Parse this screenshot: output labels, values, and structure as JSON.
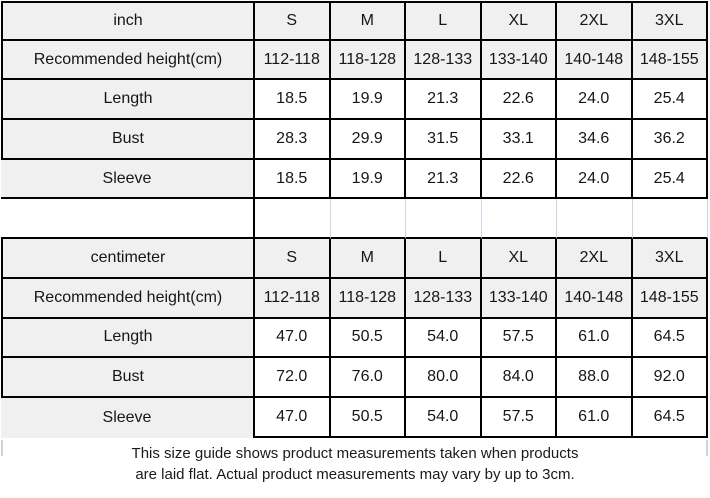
{
  "page": {
    "background": "#ffffff"
  },
  "table": {
    "border_color": "#000000",
    "header_fill": "#f0f0f0",
    "gridline_color": "#c9d5e4",
    "rows": [
      {
        "kind": "header",
        "label": "inch",
        "cells": [
          "S",
          "M",
          "L",
          "XL",
          "2XL",
          "3XL"
        ]
      },
      {
        "kind": "header",
        "label": "Recommended height(cm)",
        "cells": [
          "112-118",
          "118-128",
          "128-133",
          "133-140",
          "140-148",
          "148-155"
        ]
      },
      {
        "kind": "data",
        "label": "Length",
        "cells": [
          "18.5",
          "19.9",
          "21.3",
          "22.6",
          "24.0",
          "25.4"
        ]
      },
      {
        "kind": "data",
        "label": "Bust",
        "cells": [
          "28.3",
          "29.9",
          "31.5",
          "33.1",
          "34.6",
          "36.2"
        ]
      },
      {
        "kind": "data sleeve",
        "label": "Sleeve",
        "cells": [
          "18.5",
          "19.9",
          "21.3",
          "22.6",
          "24.0",
          "25.4"
        ]
      },
      {
        "kind": "spacer",
        "label": "",
        "cells": [
          "",
          "",
          "",
          "",
          "",
          ""
        ]
      },
      {
        "kind": "header",
        "label": "centimeter",
        "cells": [
          "S",
          "M",
          "L",
          "XL",
          "2XL",
          "3XL"
        ]
      },
      {
        "kind": "header",
        "label": "Recommended height(cm)",
        "cells": [
          "112-118",
          "118-128",
          "128-133",
          "133-140",
          "140-148",
          "148-155"
        ]
      },
      {
        "kind": "data",
        "label": "Length",
        "cells": [
          "47.0",
          "50.5",
          "54.0",
          "57.5",
          "61.0",
          "64.5"
        ]
      },
      {
        "kind": "data",
        "label": "Bust",
        "cells": [
          "72.0",
          "76.0",
          "80.0",
          "84.0",
          "88.0",
          "92.0"
        ]
      },
      {
        "kind": "data sleeve sleeve-last",
        "label": "Sleeve",
        "cells": [
          "47.0",
          "50.5",
          "54.0",
          "57.5",
          "61.0",
          "64.5"
        ]
      }
    ]
  },
  "footer": {
    "line1": "This size guide shows product measurements taken when products",
    "line2": "are laid flat. Actual product measurements may vary by up to 3cm."
  },
  "chart_data": {
    "type": "table",
    "title": "Size guide (product measurements, laid flat)",
    "sections": [
      {
        "unit": "inch",
        "columns": [
          "S",
          "M",
          "L",
          "XL",
          "2XL",
          "3XL"
        ],
        "rows": [
          {
            "label": "Recommended height(cm)",
            "values": [
              "112-118",
              "118-128",
              "128-133",
              "133-140",
              "140-148",
              "148-155"
            ]
          },
          {
            "label": "Length",
            "values": [
              18.5,
              19.9,
              21.3,
              22.6,
              24.0,
              25.4
            ]
          },
          {
            "label": "Bust",
            "values": [
              28.3,
              29.9,
              31.5,
              33.1,
              34.6,
              36.2
            ]
          },
          {
            "label": "Sleeve",
            "values": [
              18.5,
              19.9,
              21.3,
              22.6,
              24.0,
              25.4
            ]
          }
        ]
      },
      {
        "unit": "centimeter",
        "columns": [
          "S",
          "M",
          "L",
          "XL",
          "2XL",
          "3XL"
        ],
        "rows": [
          {
            "label": "Recommended height(cm)",
            "values": [
              "112-118",
              "118-128",
              "128-133",
              "133-140",
              "140-148",
              "148-155"
            ]
          },
          {
            "label": "Length",
            "values": [
              47.0,
              50.5,
              54.0,
              57.5,
              61.0,
              64.5
            ]
          },
          {
            "label": "Bust",
            "values": [
              72.0,
              76.0,
              80.0,
              84.0,
              88.0,
              92.0
            ]
          },
          {
            "label": "Sleeve",
            "values": [
              47.0,
              50.5,
              54.0,
              57.5,
              61.0,
              64.5
            ]
          }
        ]
      }
    ],
    "note": "This size guide shows product measurements taken when products are laid flat. Actual product measurements may vary by up to 3cm."
  }
}
